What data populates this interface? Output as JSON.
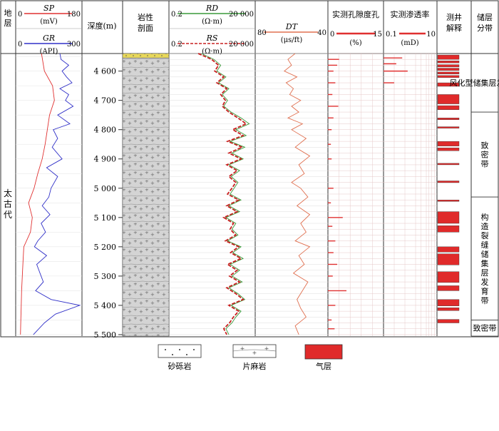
{
  "header": {
    "formation": "地层",
    "sp_name": "SP",
    "sp_unit": "(mV)",
    "sp_min": "0",
    "sp_max": "180",
    "gr_name": "GR",
    "gr_unit": "(API)",
    "gr_min": "0",
    "gr_max": "300",
    "depth": "深度(m)",
    "lith": "岩性剖面",
    "rd_name": "RD",
    "rd_unit": "(Ω·m)",
    "rd_min": "0.2",
    "rd_max": "20 000",
    "rs_name": "RS",
    "rs_unit": "(Ω·m)",
    "rs_min": "0.2",
    "rs_max": "20 000",
    "dt_name": "DT",
    "dt_unit": "(μs/ft)",
    "dt_min": "80",
    "dt_max": "40",
    "por_name": "实测孔隙度孔",
    "por_unit": "(%)",
    "por_min": "0",
    "por_max": "15",
    "perm_name": "实测渗透率",
    "perm_unit": "(mD)",
    "perm_min": "0.1",
    "perm_max": "10",
    "interp": "测井解释",
    "zone": "储层分带"
  },
  "formation_name": "太古代",
  "zones": [
    {
      "label": "风化型储集层发育带",
      "top": 4540,
      "bottom": 4740
    },
    {
      "label": "致密带",
      "top": 4740,
      "bottom": 5030
    },
    {
      "label": "构造裂缝储集层发育带",
      "top": 5030,
      "bottom": 5450
    },
    {
      "label": "致密带",
      "top": 5450,
      "bottom": 5510
    }
  ],
  "legend": {
    "sandstone": "砂砾岩",
    "gneiss": "片麻岩",
    "gas": "气层"
  },
  "colors": {
    "sp": "#e03030",
    "gr": "#3030c8",
    "rd": "#3a9a3a",
    "rs": "#c82020",
    "dt": "#e07050",
    "por": "#e03030",
    "gas": "#e02a2a",
    "sand": "#e8d85a",
    "gneiss": "#cfcfcf"
  },
  "chart_data": {
    "type": "line",
    "depth_axis": {
      "label": "深度(m)",
      "range": [
        4540,
        5505
      ],
      "ticks": [
        4600,
        4700,
        4800,
        4900,
        5000,
        5100,
        5200,
        5300,
        5400,
        5500
      ]
    },
    "lithology": [
      {
        "name": "砂砾岩",
        "top": 4540,
        "bottom": 4555
      },
      {
        "name": "片麻岩",
        "top": 4555,
        "bottom": 5505
      }
    ],
    "gas_layers": [
      [
        4545,
        4560
      ],
      [
        4565,
        4572
      ],
      [
        4578,
        4586
      ],
      [
        4590,
        4598
      ],
      [
        4603,
        4610
      ],
      [
        4615,
        4622
      ],
      [
        4640,
        4652
      ],
      [
        4680,
        4712
      ],
      [
        4718,
        4732
      ],
      [
        4760,
        4766
      ],
      [
        4790,
        4795
      ],
      [
        4840,
        4856
      ],
      [
        4862,
        4872
      ],
      [
        4915,
        4920
      ],
      [
        4975,
        4981
      ],
      [
        5040,
        5045
      ],
      [
        5080,
        5120
      ],
      [
        5128,
        5150
      ],
      [
        5200,
        5218
      ],
      [
        5224,
        5262
      ],
      [
        5285,
        5322
      ],
      [
        5333,
        5350
      ],
      [
        5380,
        5402
      ],
      [
        5408,
        5418
      ],
      [
        5448,
        5460
      ]
    ],
    "curves": [
      {
        "name": "SP",
        "unit": "mV",
        "range": [
          0,
          180
        ],
        "depth": [
          4540,
          4600,
          4650,
          4700,
          4750,
          4800,
          4850,
          4900,
          4950,
          5000,
          5050,
          5100,
          5150,
          5200,
          5250,
          5300,
          5350,
          5400,
          5450,
          5500
        ],
        "values": [
          70,
          78,
          100,
          105,
          92,
          86,
          80,
          72,
          60,
          50,
          35,
          45,
          40,
          22,
          20,
          18,
          16,
          15,
          14,
          13
        ]
      },
      {
        "name": "GR",
        "unit": "API",
        "range": [
          0,
          300
        ],
        "depth": [
          4540,
          4560,
          4580,
          4600,
          4620,
          4640,
          4660,
          4680,
          4700,
          4720,
          4750,
          4780,
          4800,
          4830,
          4860,
          4900,
          4930,
          4960,
          5000,
          5030,
          5060,
          5090,
          5120,
          5150,
          5180,
          5200,
          5230,
          5260,
          5290,
          5320,
          5350,
          5380,
          5400,
          5430,
          5460,
          5500
        ],
        "values": [
          200,
          205,
          240,
          210,
          230,
          255,
          200,
          240,
          225,
          260,
          190,
          245,
          170,
          190,
          165,
          210,
          140,
          190,
          160,
          150,
          120,
          155,
          115,
          135,
          100,
          85,
          140,
          95,
          110,
          125,
          90,
          160,
          290,
          180,
          130,
          80
        ]
      },
      {
        "name": "RD",
        "unit": "Ω·m",
        "range": [
          0.2,
          20000
        ],
        "depth": [
          4540,
          4560,
          4580,
          4600,
          4620,
          4640,
          4660,
          4680,
          4700,
          4720,
          4740,
          4760,
          4780,
          4800,
          4820,
          4840,
          4860,
          4880,
          4900,
          4920,
          4940,
          4960,
          4980,
          5000,
          5020,
          5040,
          5060,
          5080,
          5100,
          5120,
          5140,
          5160,
          5180,
          5200,
          5220,
          5240,
          5260,
          5280,
          5300,
          5320,
          5340,
          5360,
          5380,
          5400,
          5420,
          5440,
          5460,
          5480,
          5500
        ],
        "values": [
          15,
          80,
          200,
          120,
          400,
          150,
          600,
          250,
          500,
          300,
          800,
          3000,
          9000,
          1500,
          6000,
          700,
          5000,
          900,
          4000,
          600,
          2500,
          800,
          2000,
          1200,
          700,
          3000,
          600,
          2500,
          400,
          1500,
          900,
          2000,
          500,
          3000,
          1000,
          4000,
          700,
          2500,
          900,
          3500,
          600,
          2000,
          5000,
          800,
          3000,
          1500,
          900,
          400,
          600
        ]
      },
      {
        "name": "RS",
        "unit": "Ω·m",
        "range": [
          0.2,
          20000
        ],
        "depth": [
          4540,
          4560,
          4580,
          4600,
          4620,
          4640,
          4660,
          4680,
          4700,
          4720,
          4740,
          4760,
          4780,
          4800,
          4820,
          4840,
          4860,
          4880,
          4900,
          4920,
          4940,
          4960,
          4980,
          5000,
          5020,
          5040,
          5060,
          5080,
          5100,
          5120,
          5140,
          5160,
          5180,
          5200,
          5220,
          5240,
          5260,
          5280,
          5300,
          5320,
          5340,
          5360,
          5380,
          5400,
          5420,
          5440,
          5460,
          5480,
          5500
        ],
        "values": [
          10,
          60,
          150,
          90,
          300,
          120,
          450,
          200,
          380,
          250,
          600,
          2000,
          6000,
          1000,
          4000,
          500,
          3500,
          600,
          3000,
          450,
          1800,
          600,
          1500,
          900,
          500,
          2200,
          450,
          1800,
          300,
          1100,
          700,
          1500,
          380,
          2200,
          750,
          3000,
          500,
          1800,
          650,
          2500,
          450,
          1500,
          4000,
          600,
          2200,
          1100,
          650,
          300,
          450
        ]
      },
      {
        "name": "DT",
        "unit": "μs/ft",
        "range": [
          80,
          40
        ],
        "depth": [
          4540,
          4560,
          4580,
          4600,
          4620,
          4640,
          4660,
          4680,
          4700,
          4720,
          4740,
          4760,
          4780,
          4800,
          4830,
          4860,
          4890,
          4920,
          4950,
          4980,
          5000,
          5030,
          5060,
          5090,
          5120,
          5150,
          5180,
          5200,
          5230,
          5260,
          5290,
          5320,
          5350,
          5380,
          5410,
          5440,
          5470,
          5500
        ],
        "values": [
          58,
          62,
          60,
          64,
          57,
          63,
          59,
          61,
          55,
          60,
          56,
          62,
          54,
          60,
          52,
          58,
          50,
          56,
          53,
          60,
          55,
          51,
          57,
          50,
          55,
          52,
          58,
          50,
          56,
          53,
          59,
          51,
          54,
          57,
          55,
          52,
          58,
          56
        ]
      }
    ],
    "porosity": {
      "unit": "%",
      "range": [
        0,
        15
      ],
      "depth": [
        4560,
        4580,
        4600,
        4640,
        4680,
        4720,
        4760,
        4800,
        4850,
        4900,
        5000,
        5050,
        5100,
        5130,
        5180,
        5220,
        5260,
        5300,
        5350,
        5400,
        5450,
        5480
      ],
      "values": [
        3,
        2.5,
        1.5,
        2,
        1.2,
        2.8,
        1.5,
        1,
        0.8,
        1,
        1.5,
        0.8,
        4,
        1.2,
        2,
        1.5,
        2.5,
        1.3,
        5,
        2,
        1,
        1.8
      ]
    },
    "permeability": {
      "unit": "mD",
      "range": [
        0.1,
        10
      ],
      "depth": [
        4555,
        4575,
        4600,
        4640
      ],
      "values": [
        0.5,
        0.3,
        0.8,
        0.25
      ]
    }
  }
}
